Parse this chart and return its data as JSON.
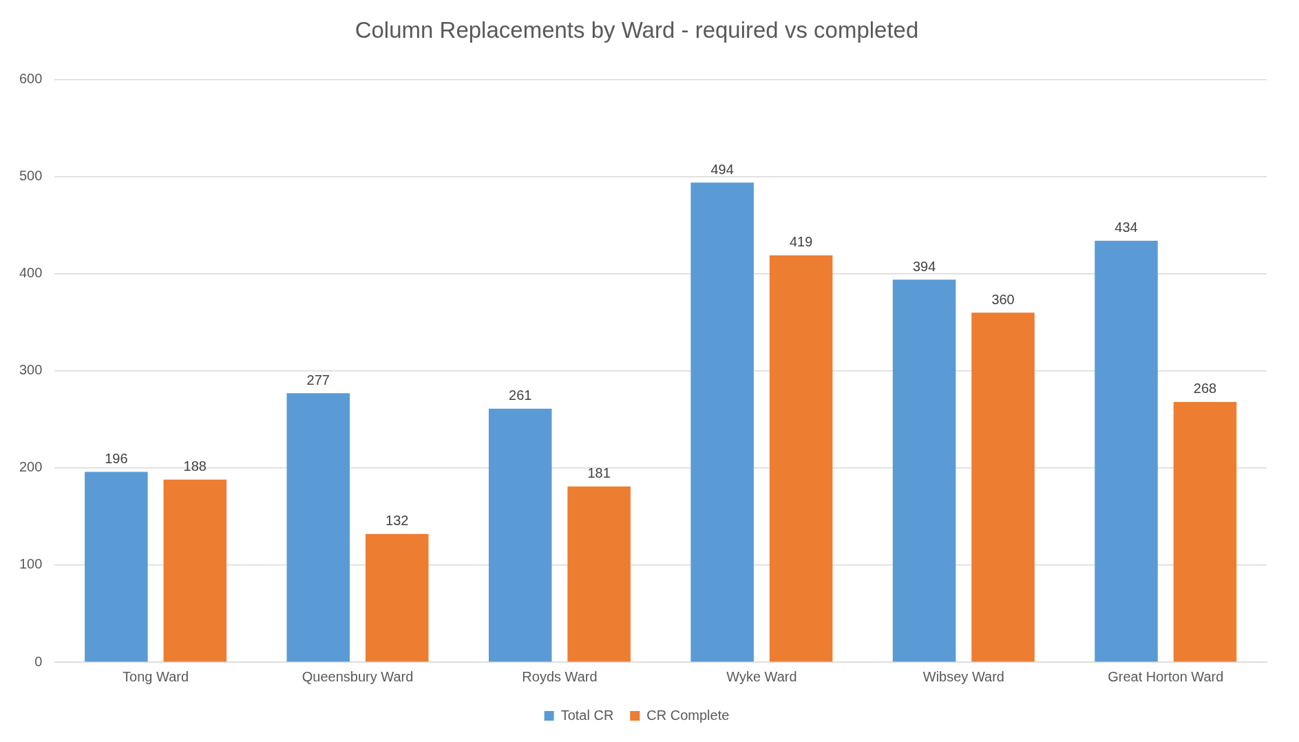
{
  "chart_data": {
    "type": "bar",
    "title": "Column Replacements by Ward - required vs completed",
    "categories": [
      "Tong Ward",
      "Queensbury Ward",
      "Royds Ward",
      "Wyke Ward",
      "Wibsey Ward",
      "Great Horton Ward"
    ],
    "series": [
      {
        "name": "Total CR",
        "color": "#5b9bd5",
        "values": [
          196,
          277,
          261,
          494,
          394,
          434
        ]
      },
      {
        "name": "CR Complete",
        "color": "#ed7d31",
        "values": [
          188,
          132,
          181,
          419,
          360,
          268
        ]
      }
    ],
    "ylim": [
      0,
      600
    ],
    "yticks": [
      0,
      100,
      200,
      300,
      400,
      500,
      600
    ],
    "grid": "y",
    "legend": "bottom",
    "data_labels": true
  }
}
